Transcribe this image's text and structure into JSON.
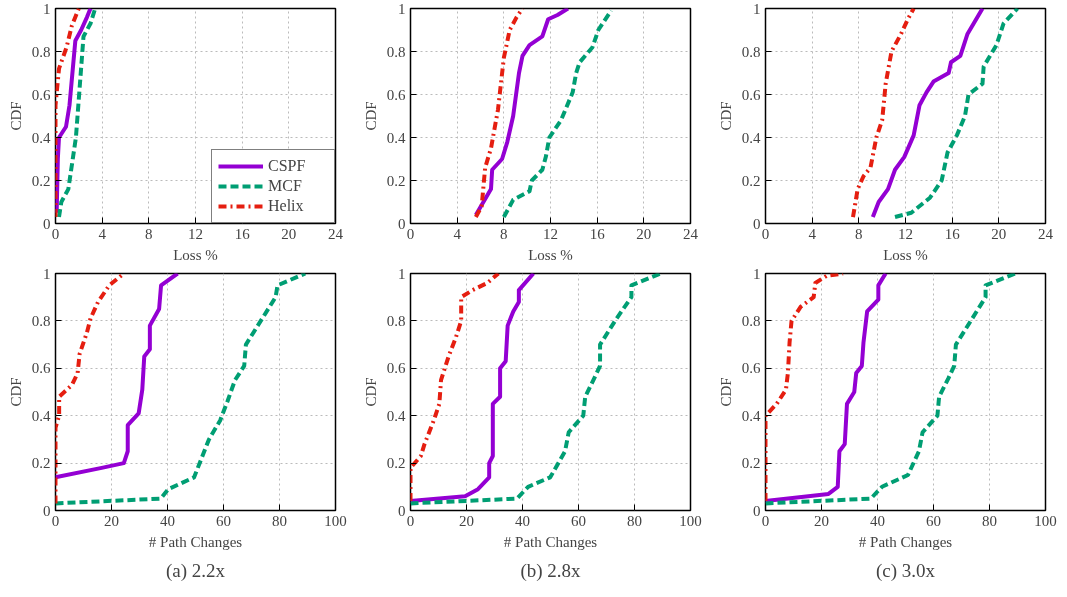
{
  "chart_data": [
    {
      "type": "line",
      "xlabel": "Loss %",
      "ylabel": "CDF",
      "xlim": [
        0,
        24
      ],
      "ylim": [
        0,
        1
      ],
      "xticks": [
        0,
        4,
        8,
        12,
        16,
        20,
        24
      ],
      "yticks": [
        0,
        0.2,
        0.4,
        0.6,
        0.8,
        1
      ],
      "grid": true,
      "legend": "bottom right",
      "series": [
        {
          "name": "CSPF",
          "color": "#9400d3",
          "line_style": "solid",
          "x": [
            0.1,
            0.2,
            0.3,
            0.9,
            1.2,
            1.7,
            2.2,
            2.7,
            3.0
          ],
          "values": [
            0.05,
            0.3,
            0.4,
            0.45,
            0.55,
            0.85,
            0.9,
            0.96,
            1.0
          ]
        },
        {
          "name": "MCF",
          "color": "#009e73",
          "line_style": "dashed",
          "x": [
            0.3,
            0.5,
            1.1,
            1.75,
            2.4,
            3.0,
            3.4
          ],
          "values": [
            0.03,
            0.1,
            0.16,
            0.4,
            0.87,
            0.93,
            1.0
          ]
        },
        {
          "name": "Helix",
          "color": "#e51e10",
          "line_style": "dashdot",
          "x": [
            0,
            0,
            0.3,
            0.95,
            1.4,
            2.0
          ],
          "values": [
            0.03,
            0.55,
            0.72,
            0.82,
            0.92,
            1.0
          ]
        }
      ]
    },
    {
      "type": "line",
      "xlabel": "Loss %",
      "ylabel": "CDF",
      "xlim": [
        0,
        24
      ],
      "ylim": [
        0,
        1
      ],
      "xticks": [
        0,
        4,
        8,
        12,
        16,
        20,
        24
      ],
      "yticks": [
        0,
        0.2,
        0.4,
        0.6,
        0.8,
        1
      ],
      "grid": true,
      "series": [
        {
          "color": "#9400d3",
          "line_style": "solid",
          "x": [
            5.6,
            6.9,
            7.0,
            7.85,
            8.3,
            8.8,
            9.3,
            9.6,
            10.2,
            11.3,
            11.8,
            12.6,
            13.5
          ],
          "values": [
            0.04,
            0.16,
            0.25,
            0.3,
            0.38,
            0.5,
            0.7,
            0.78,
            0.83,
            0.87,
            0.95,
            0.97,
            1.0
          ]
        },
        {
          "color": "#009e73",
          "line_style": "dashed",
          "x": [
            8.0,
            8.8,
            10.2,
            10.4,
            11.3,
            11.6,
            11.9,
            12.9,
            13.9,
            14.2,
            14.5,
            15.6,
            16.1,
            17.2
          ],
          "values": [
            0.03,
            0.11,
            0.15,
            0.2,
            0.25,
            0.31,
            0.4,
            0.48,
            0.61,
            0.7,
            0.75,
            0.82,
            0.9,
            0.99
          ]
        },
        {
          "color": "#e51e10",
          "line_style": "dashdot",
          "x": [
            5.6,
            6.1,
            6.4,
            6.9,
            7.5,
            8.0,
            8.5,
            9.1,
            9.6
          ],
          "values": [
            0.03,
            0.08,
            0.26,
            0.35,
            0.53,
            0.77,
            0.9,
            0.96,
            1.0
          ]
        }
      ]
    },
    {
      "type": "line",
      "xlabel": "Loss %",
      "ylabel": "CDF",
      "xlim": [
        0,
        24
      ],
      "ylim": [
        0,
        1
      ],
      "xticks": [
        0,
        4,
        8,
        12,
        16,
        20,
        24
      ],
      "yticks": [
        0,
        0.2,
        0.4,
        0.6,
        0.8,
        1
      ],
      "grid": true,
      "series": [
        {
          "color": "#9400d3",
          "line_style": "solid",
          "x": [
            9.2,
            9.7,
            10.5,
            11.1,
            11.9,
            12.7,
            13.2,
            13.8,
            14.4,
            15.7,
            15.9,
            16.7,
            17.3,
            18.6
          ],
          "values": [
            0.03,
            0.1,
            0.16,
            0.25,
            0.31,
            0.41,
            0.55,
            0.61,
            0.66,
            0.7,
            0.75,
            0.78,
            0.88,
            1.0
          ]
        },
        {
          "color": "#009e73",
          "line_style": "dashed",
          "x": [
            11.1,
            12.5,
            14.1,
            15.1,
            15.6,
            16.4,
            17.1,
            17.4,
            18.6,
            18.7,
            19.8,
            20.4,
            21.6
          ],
          "values": [
            0.03,
            0.05,
            0.12,
            0.2,
            0.33,
            0.41,
            0.5,
            0.6,
            0.65,
            0.73,
            0.83,
            0.93,
            1.0
          ]
        },
        {
          "color": "#e51e10",
          "line_style": "dashdot",
          "x": [
            7.5,
            7.9,
            8.4,
            9.0,
            9.5,
            10.0,
            10.3,
            10.8,
            11.6,
            12.2,
            12.7
          ],
          "values": [
            0.03,
            0.16,
            0.22,
            0.26,
            0.4,
            0.48,
            0.65,
            0.8,
            0.88,
            0.95,
            1.0
          ]
        }
      ]
    },
    {
      "type": "line",
      "xlabel": "# Path Changes",
      "ylabel": "CDF",
      "xlim": [
        0,
        100
      ],
      "ylim": [
        0,
        1
      ],
      "xticks": [
        0,
        20,
        40,
        60,
        80,
        100
      ],
      "yticks": [
        0,
        0.2,
        0.4,
        0.6,
        0.8,
        1
      ],
      "grid": true,
      "annotations": [
        "(a) 2.2x"
      ],
      "series": [
        {
          "color": "#9400d3",
          "line_style": "solid",
          "x": [
            0,
            16.5,
            24.4,
            25.8,
            25.8,
            29.7,
            31,
            31.7,
            33.7,
            33.7,
            37,
            37.7,
            43.6
          ],
          "values": [
            0.14,
            0.18,
            0.2,
            0.25,
            0.36,
            0.41,
            0.51,
            0.65,
            0.68,
            0.78,
            0.85,
            0.95,
            1.0
          ]
        },
        {
          "color": "#009e73",
          "line_style": "dashed",
          "x": [
            0,
            37.6,
            40.3,
            49.5,
            54.8,
            58.8,
            61.4,
            64.1,
            67.4,
            68,
            73.3,
            78.6,
            79.3,
            89.2
          ],
          "values": [
            0.03,
            0.05,
            0.09,
            0.14,
            0.3,
            0.38,
            0.46,
            0.55,
            0.61,
            0.7,
            0.8,
            0.9,
            0.95,
            1.0
          ]
        },
        {
          "color": "#e51e10",
          "line_style": "dashdot",
          "x": [
            0,
            0,
            1.3,
            1.3,
            5.9,
            7.9,
            8.6,
            11.2,
            12.5,
            15.2,
            19.2,
            24.4
          ],
          "values": [
            0.03,
            0.35,
            0.4,
            0.48,
            0.53,
            0.58,
            0.66,
            0.75,
            0.81,
            0.88,
            0.95,
            1.0
          ]
        }
      ]
    },
    {
      "type": "line",
      "xlabel": "# Path Changes",
      "ylabel": "CDF",
      "xlim": [
        0,
        100
      ],
      "ylim": [
        0,
        1
      ],
      "xticks": [
        0,
        20,
        40,
        60,
        80,
        100
      ],
      "yticks": [
        0,
        0.2,
        0.4,
        0.6,
        0.8,
        1
      ],
      "grid": true,
      "annotations": [
        "(b) 2.8x"
      ],
      "series": [
        {
          "color": "#9400d3",
          "line_style": "solid",
          "x": [
            0,
            19.5,
            24.1,
            28.1,
            28.1,
            29.4,
            29.4,
            32,
            32,
            34,
            34.7,
            36.7,
            38.7,
            38.7,
            43.9
          ],
          "values": [
            0.04,
            0.06,
            0.09,
            0.14,
            0.2,
            0.23,
            0.45,
            0.48,
            0.6,
            0.63,
            0.78,
            0.84,
            0.88,
            0.93,
            1.0
          ]
        },
        {
          "color": "#009e73",
          "line_style": "dashed",
          "x": [
            0,
            38,
            42,
            49.9,
            55.2,
            56.5,
            61.7,
            62.4,
            65.7,
            67.7,
            67.7,
            73.6,
            78.9,
            78.9,
            89.4
          ],
          "values": [
            0.03,
            0.05,
            0.1,
            0.14,
            0.25,
            0.33,
            0.4,
            0.48,
            0.56,
            0.61,
            0.7,
            0.81,
            0.9,
            0.95,
            1.0
          ]
        },
        {
          "color": "#e51e10",
          "line_style": "dashdot",
          "x": [
            0,
            0,
            3.7,
            5,
            8.3,
            10.3,
            10.9,
            13.6,
            16.2,
            18.1,
            18.1,
            22.2,
            27.4,
            31.4
          ],
          "values": [
            0.04,
            0.18,
            0.23,
            0.28,
            0.38,
            0.45,
            0.55,
            0.65,
            0.73,
            0.8,
            0.9,
            0.93,
            0.96,
            1.0
          ]
        }
      ]
    },
    {
      "type": "line",
      "xlabel": "# Path Changes",
      "ylabel": "CDF",
      "xlim": [
        0,
        100
      ],
      "ylim": [
        0,
        1
      ],
      "xticks": [
        0,
        20,
        40,
        60,
        80,
        100
      ],
      "yticks": [
        0,
        0.2,
        0.4,
        0.6,
        0.8,
        1
      ],
      "grid": true,
      "annotations": [
        "(c) 3.0x"
      ],
      "series": [
        {
          "color": "#9400d3",
          "line_style": "solid",
          "x": [
            0,
            22.5,
            25.8,
            26.4,
            28.3,
            29.1,
            31.7,
            32.4,
            34.4,
            35,
            36.3,
            40.3,
            40.3,
            42.9
          ],
          "values": [
            0.04,
            0.07,
            0.1,
            0.25,
            0.28,
            0.45,
            0.5,
            0.58,
            0.61,
            0.71,
            0.84,
            0.89,
            0.95,
            1.0
          ]
        },
        {
          "color": "#009e73",
          "line_style": "dashed",
          "x": [
            0,
            37.6,
            41.6,
            50.9,
            54.8,
            56.1,
            61.4,
            62,
            65.4,
            67.4,
            68,
            73.3,
            78.6,
            78.6,
            89.2
          ],
          "values": [
            0.03,
            0.05,
            0.1,
            0.15,
            0.25,
            0.33,
            0.4,
            0.48,
            0.56,
            0.61,
            0.7,
            0.8,
            0.9,
            0.95,
            1.0
          ]
        },
        {
          "color": "#e51e10",
          "line_style": "dashdot",
          "x": [
            0,
            0,
            4,
            7.3,
            8,
            8.6,
            9.3,
            12.6,
            17.2,
            17.8,
            21.8,
            27.7
          ],
          "values": [
            0.04,
            0.4,
            0.45,
            0.51,
            0.58,
            0.71,
            0.8,
            0.86,
            0.9,
            0.96,
            0.99,
            1.0
          ]
        }
      ]
    }
  ]
}
